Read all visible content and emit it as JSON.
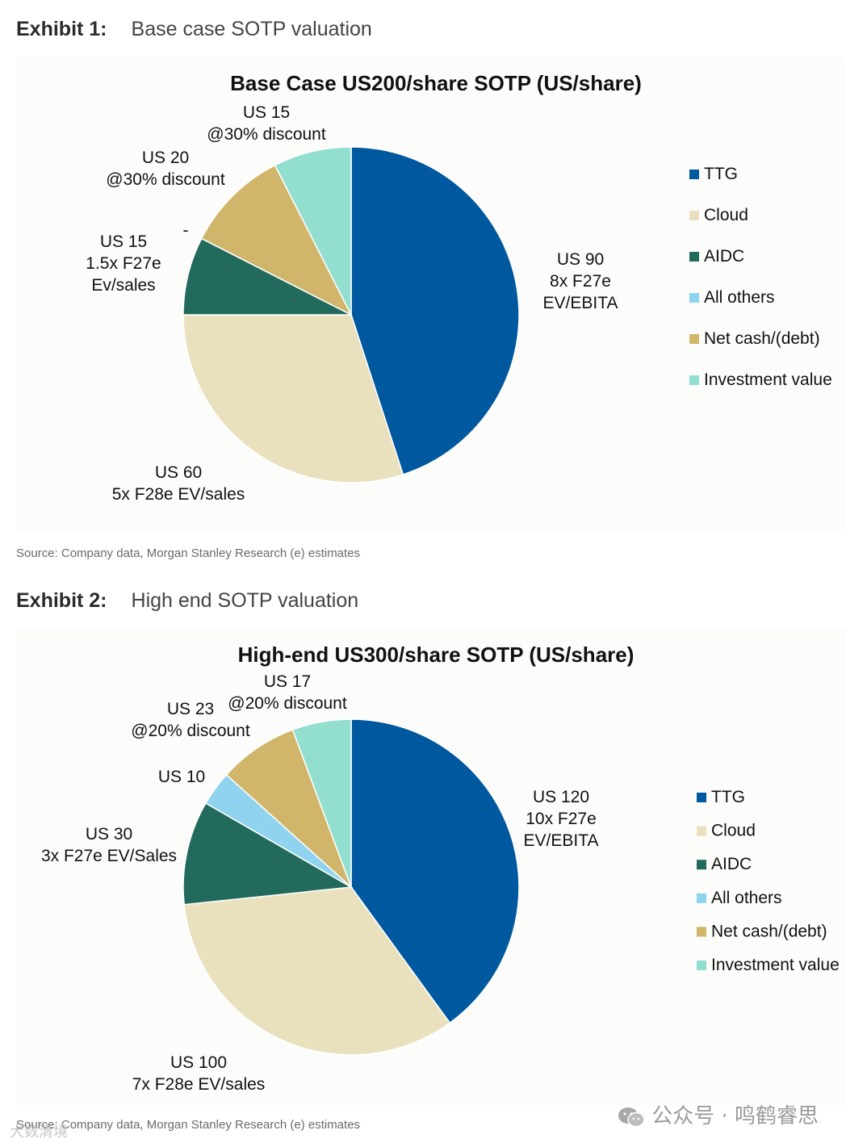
{
  "exhibits": [
    {
      "number": "Exhibit 1:",
      "title": "Base case SOTP valuation",
      "source": "Source: Company data, Morgan Stanley Research (e) estimates"
    },
    {
      "number": "Exhibit 2:",
      "title": "High end SOTP valuation",
      "source": "Source: Company data, Morgan Stanley Research (e) estimates"
    }
  ],
  "colors": {
    "TTG": "#00589f",
    "Cloud": "#e9e0bd",
    "AIDC": "#226b5c",
    "All others": "#8fd3ee",
    "Net cash/(debt)": "#d0b56a",
    "Investment value": "#93dfcf"
  },
  "chart_data": [
    {
      "type": "pie",
      "title": "Base Case US200/share SOTP (US/share)",
      "legend_position": "right",
      "start": "12 o'clock, clockwise",
      "categories": [
        "TTG",
        "Cloud",
        "AIDC",
        "All others",
        "Net cash/(debt)",
        "Investment value"
      ],
      "values": [
        90,
        60,
        15,
        0,
        20,
        15
      ],
      "labels": [
        [
          "US 90",
          "8x F27e",
          "EV/EBITA"
        ],
        [
          "US 60",
          "5x F28e EV/sales"
        ],
        [
          "US 15",
          "1.5x F27e",
          "Ev/sales"
        ],
        [
          "-"
        ],
        [
          "US 20",
          "@30% discount"
        ],
        [
          "US 15",
          "@30% discount"
        ]
      ]
    },
    {
      "type": "pie",
      "title": "High-end US300/share SOTP (US/share)",
      "legend_position": "right",
      "start": "12 o'clock, clockwise",
      "categories": [
        "TTG",
        "Cloud",
        "AIDC",
        "All others",
        "Net cash/(debt)",
        "Investment value"
      ],
      "values": [
        120,
        100,
        30,
        10,
        23,
        17
      ],
      "labels": [
        [
          "US 120",
          "10x F27e",
          "EV/EBITA"
        ],
        [
          "US 100",
          "7x F28e EV/sales"
        ],
        [
          "US 30",
          "3x F27e EV/Sales"
        ],
        [
          "US 10"
        ],
        [
          "US 23",
          "@20% discount"
        ],
        [
          "US 17",
          "@20% discount"
        ]
      ]
    }
  ],
  "watermark": {
    "text": "公众号 · 鸣鹤睿思",
    "left_text": "大数清境"
  }
}
